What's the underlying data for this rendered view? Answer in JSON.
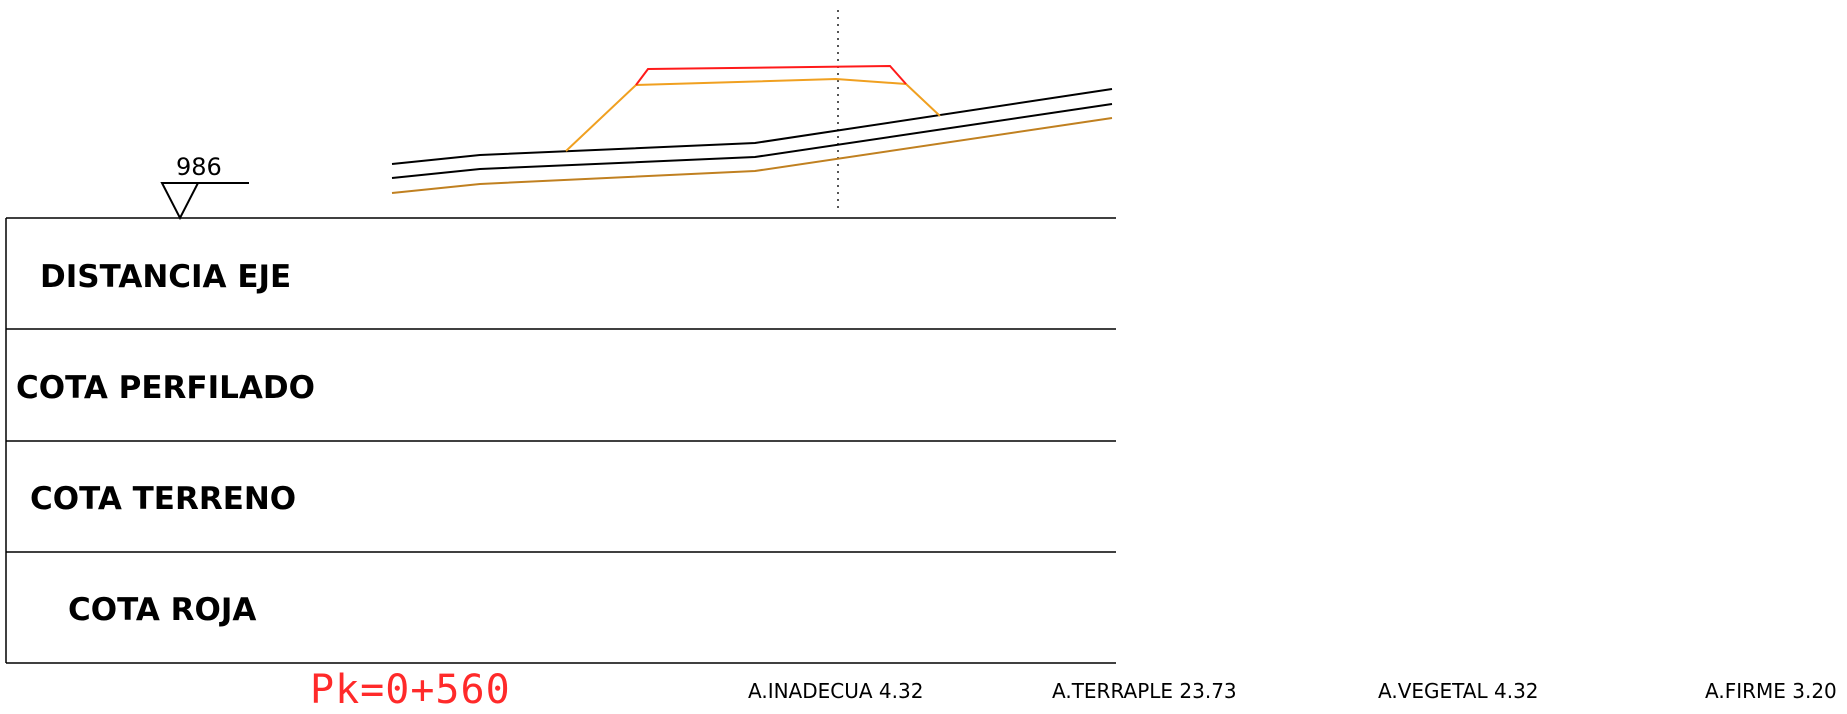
{
  "datum": {
    "elevation": "986"
  },
  "rows": [
    {
      "label": "DISTANCIA EJE"
    },
    {
      "label": "COTA PERFILADO"
    },
    {
      "label": "COTA TERRENO"
    },
    {
      "label": "COTA ROJA"
    }
  ],
  "station": {
    "label": "Pk=0+560"
  },
  "areas": [
    {
      "label": "A.INADECUA 4.32"
    },
    {
      "label": "A.TERRAPLE 23.73"
    },
    {
      "label": "A.VEGETAL 4.32"
    },
    {
      "label": "A.FIRME 3.20"
    }
  ],
  "colors": {
    "design_line": "#ff1a1a",
    "embankment_line": "#f0a020",
    "terrain_line": "#000000",
    "firm_line": "#c08020",
    "frame": "#000000",
    "station_text": "#ff2a2a"
  }
}
